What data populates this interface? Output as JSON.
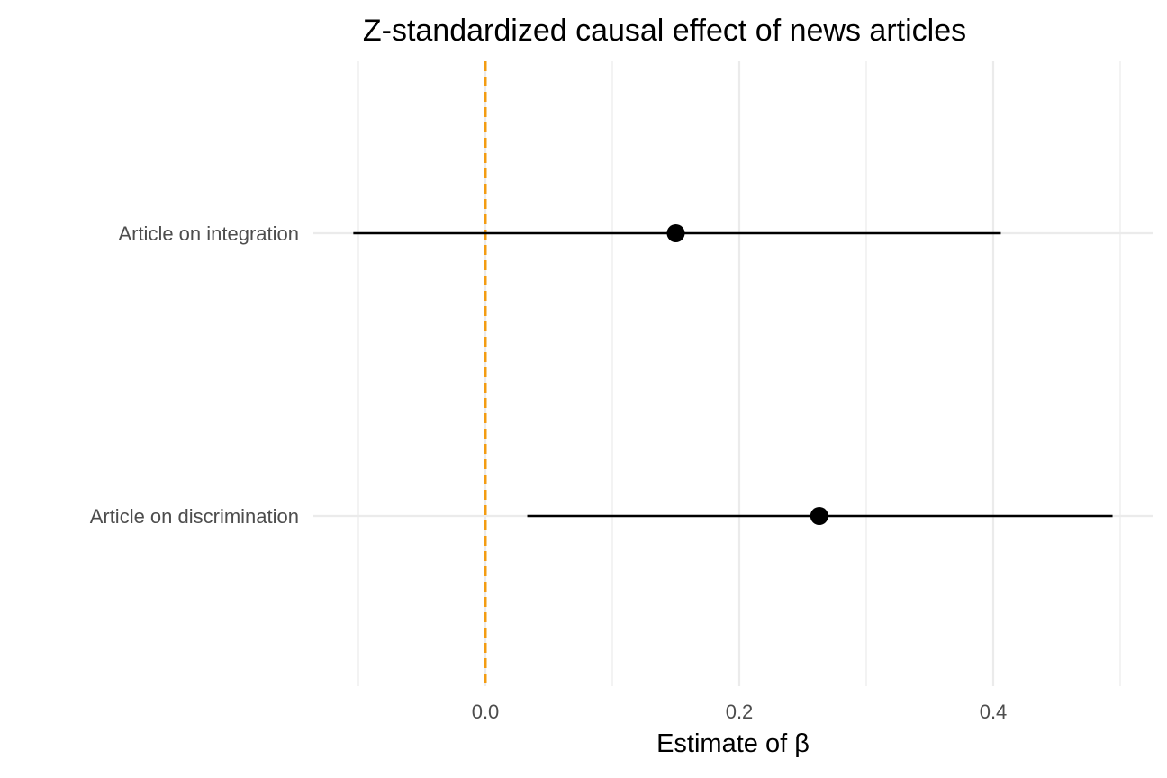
{
  "chart_data": {
    "type": "scatter",
    "title": "Z-standardized causal effect of news articles",
    "xlabel": "Estimate of β",
    "ylabel": "",
    "xlim": [
      -0.1,
      0.52
    ],
    "xticks": [
      {
        "value": 0.0,
        "label": "0.0"
      },
      {
        "value": 0.2,
        "label": "0.2"
      },
      {
        "value": 0.4,
        "label": "0.4"
      }
    ],
    "minor_gridlines": [
      -0.1,
      0.1,
      0.3,
      0.5
    ],
    "grid": true,
    "reference_line": {
      "x": 0,
      "style": "dashed",
      "color": "#f39c12"
    },
    "colors": {
      "points": "#000000",
      "intervals": "#000000",
      "grid": "#ebebeb"
    },
    "categories": [
      "Article on integration",
      "Article on discrimination"
    ],
    "points": [
      {
        "category": "Article on integration",
        "estimate": 0.15,
        "lower": -0.104,
        "upper": 0.406
      },
      {
        "category": "Article on discrimination",
        "estimate": 0.263,
        "lower": 0.033,
        "upper": 0.494
      }
    ]
  }
}
